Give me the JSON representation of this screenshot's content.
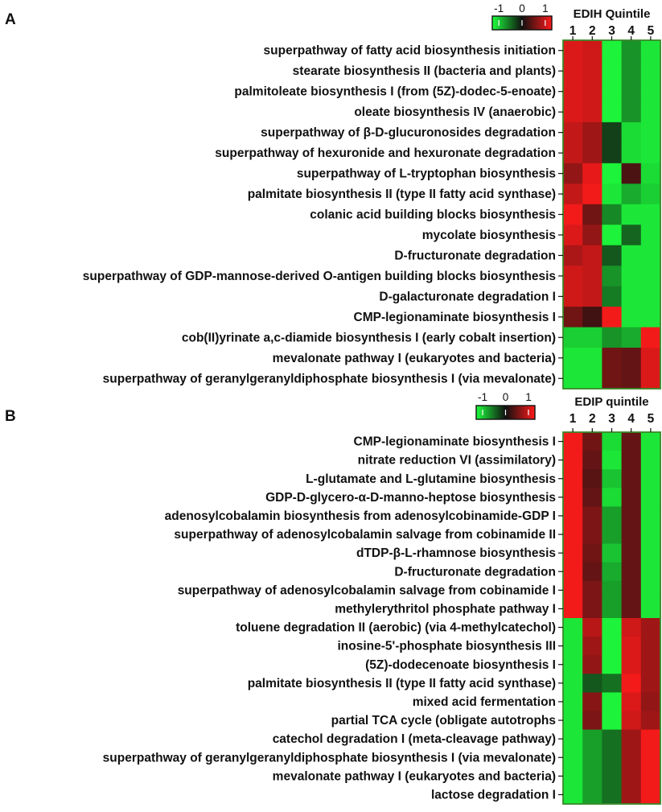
{
  "chart_data": [
    {
      "type": "heatmap",
      "panel_label": "A",
      "column_title": "EDIH Quintile",
      "columns": [
        "1",
        "2",
        "3",
        "4",
        "5"
      ],
      "legend": {
        "ticks": [
          "-1",
          "0",
          "1"
        ],
        "low_color": "#1dff3c",
        "mid_color": "#101010",
        "high_color": "#ff1a1a"
      },
      "rows": [
        "superpathway of fatty acid biosynthesis initiation",
        "stearate biosynthesis II (bacteria and plants)",
        "palmitoleate biosynthesis I (from (5Z)-dodec-5-enoate)",
        "oleate biosynthesis IV (anaerobic)",
        "superpathway of β-D-glucuronosides degradation",
        "superpathway of hexuronide and hexuronate degradation",
        "superpathway of L-tryptophan biosynthesis",
        "palmitate biosynthesis II (type II fatty acid synthase)",
        "colanic acid building blocks biosynthesis",
        "mycolate biosynthesis",
        "D-fructuronate degradation",
        "superpathway of GDP-mannose-derived O-antigen building blocks biosynthesis",
        "D-galacturonate degradation I",
        "CMP-legionaminate biosynthesis I",
        "cob(II)yrinate a,c-diamide biosynthesis I (early cobalt insertion)",
        "mevalonate pathway I (eukaryotes and bacteria)",
        "superpathway of geranylgeranyldiphosphate biosynthesis I (via mevalonate)"
      ],
      "values": [
        [
          0.85,
          0.8,
          -0.95,
          -0.55,
          -0.9
        ],
        [
          0.85,
          0.8,
          -0.95,
          -0.55,
          -0.9
        ],
        [
          0.85,
          0.8,
          -0.95,
          -0.55,
          -0.9
        ],
        [
          0.85,
          0.8,
          -0.95,
          -0.55,
          -0.9
        ],
        [
          0.75,
          0.6,
          -0.2,
          -0.85,
          -0.9
        ],
        [
          0.75,
          0.6,
          -0.2,
          -0.85,
          -0.9
        ],
        [
          0.55,
          0.9,
          -0.95,
          0.25,
          -0.85
        ],
        [
          0.75,
          0.95,
          -0.9,
          -0.65,
          -0.8
        ],
        [
          0.95,
          0.4,
          -0.5,
          -0.9,
          -0.9
        ],
        [
          0.85,
          0.55,
          -0.95,
          -0.35,
          -0.9
        ],
        [
          0.65,
          0.75,
          -0.3,
          -0.9,
          -0.9
        ],
        [
          0.8,
          0.75,
          -0.55,
          -0.9,
          -0.9
        ],
        [
          0.8,
          0.75,
          -0.45,
          -0.9,
          -0.9
        ],
        [
          0.4,
          0.2,
          0.95,
          -0.9,
          -0.9
        ],
        [
          -0.8,
          -0.8,
          -0.55,
          -0.65,
          0.95
        ],
        [
          -0.9,
          -0.9,
          0.4,
          0.35,
          0.85
        ],
        [
          -0.9,
          -0.9,
          0.4,
          0.35,
          0.85
        ]
      ]
    },
    {
      "type": "heatmap",
      "panel_label": "B",
      "column_title": "EDIP quintile",
      "columns": [
        "1",
        "2",
        "3",
        "4",
        "5"
      ],
      "legend": {
        "ticks": [
          "-1",
          "0",
          "1"
        ],
        "low_color": "#1dff3c",
        "mid_color": "#101010",
        "high_color": "#ff1a1a"
      },
      "rows": [
        "CMP-legionaminate biosynthesis I",
        "nitrate reduction VI (assimilatory)",
        "L-glutamate and L-glutamine biosynthesis",
        "GDP-D-glycero-α-D-manno-heptose biosynthesis",
        "adenosylcobalamin biosynthesis from adenosylcobinamide-GDP I",
        "superpathway of adenosylcobalamin salvage from cobinamide II",
        "dTDP-β-L-rhamnose biosynthesis",
        "D-fructuronate degradation",
        "superpathway of adenosylcobalamin salvage from cobinamide I",
        "methylerythritol phosphate pathway I",
        "toluene degradation II (aerobic) (via 4-methylcatechol)",
        "inosine-5'-phosphate biosynthesis III",
        "(5Z)-dodecenoate biosynthesis I",
        "palmitate biosynthesis II (type II fatty acid synthase)",
        "mixed acid fermentation",
        "partial TCA cycle (obligate autotrophs",
        "catechol degradation I (meta-cleavage pathway)",
        "superpathway of geranylgeranyldiphosphate biosynthesis I (via mevalonate)",
        "mevalonate pathway I (eukaryotes and bacteria)",
        "lactose degradation I"
      ],
      "values": [
        [
          0.95,
          0.4,
          -0.85,
          0.35,
          -0.9
        ],
        [
          0.95,
          0.35,
          -0.9,
          0.35,
          -0.9
        ],
        [
          0.95,
          0.3,
          -0.75,
          0.35,
          -0.9
        ],
        [
          0.95,
          0.35,
          -0.85,
          0.35,
          -0.9
        ],
        [
          0.95,
          0.45,
          -0.6,
          0.35,
          -0.9
        ],
        [
          0.95,
          0.45,
          -0.6,
          0.35,
          -0.9
        ],
        [
          0.95,
          0.4,
          -0.75,
          0.35,
          -0.9
        ],
        [
          0.95,
          0.35,
          -0.65,
          0.35,
          -0.9
        ],
        [
          0.95,
          0.45,
          -0.6,
          0.35,
          -0.9
        ],
        [
          0.95,
          0.45,
          -0.6,
          0.35,
          -0.9
        ],
        [
          -0.9,
          0.7,
          -0.95,
          0.8,
          0.6
        ],
        [
          -0.9,
          0.6,
          -0.95,
          0.85,
          0.6
        ],
        [
          -0.9,
          0.55,
          -0.95,
          0.85,
          0.6
        ],
        [
          -0.9,
          -0.3,
          -0.4,
          0.95,
          0.6
        ],
        [
          -0.9,
          0.5,
          -0.95,
          0.85,
          0.55
        ],
        [
          -0.9,
          0.45,
          -0.95,
          0.8,
          0.6
        ],
        [
          -0.9,
          -0.6,
          -0.4,
          0.6,
          0.95
        ],
        [
          -0.9,
          -0.6,
          -0.4,
          0.6,
          0.95
        ],
        [
          -0.9,
          -0.6,
          -0.4,
          0.6,
          0.95
        ],
        [
          -0.9,
          -0.6,
          -0.4,
          0.6,
          0.95
        ]
      ]
    }
  ]
}
